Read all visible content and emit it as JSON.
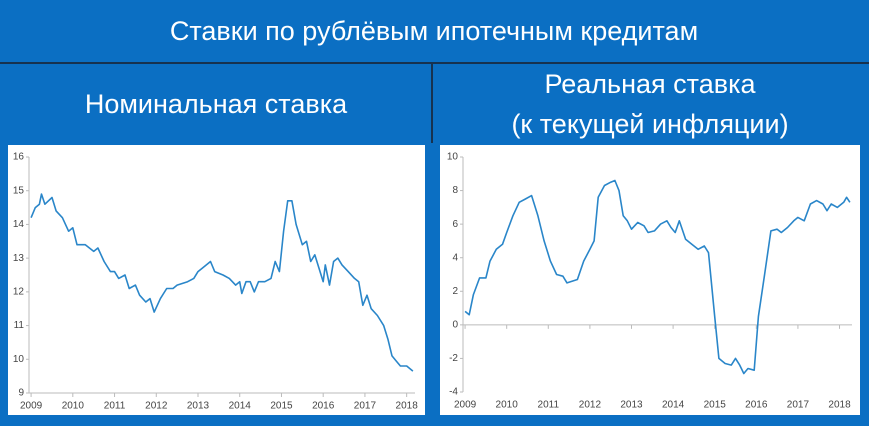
{
  "title": "Ставки по рублёвым ипотечным кредитам",
  "chart_data": [
    {
      "type": "line",
      "title": "Номинальная ставка",
      "color": "#2a86c9",
      "xlim": [
        2008.95,
        2018.2
      ],
      "xticks": [
        2009,
        2010,
        2011,
        2012,
        2013,
        2014,
        2015,
        2016,
        2017,
        2018
      ],
      "ylim": [
        9,
        16
      ],
      "yticks": [
        9,
        10,
        11,
        12,
        13,
        14,
        15,
        16
      ],
      "x": [
        2009.0,
        2009.1,
        2009.2,
        2009.25,
        2009.33,
        2009.5,
        2009.6,
        2009.75,
        2009.9,
        2010.0,
        2010.1,
        2010.3,
        2010.5,
        2010.6,
        2010.75,
        2010.9,
        2011.0,
        2011.1,
        2011.25,
        2011.35,
        2011.5,
        2011.6,
        2011.75,
        2011.85,
        2011.95,
        2012.1,
        2012.25,
        2012.4,
        2012.5,
        2012.75,
        2012.9,
        2013.0,
        2013.1,
        2013.3,
        2013.4,
        2013.6,
        2013.75,
        2013.9,
        2014.0,
        2014.05,
        2014.15,
        2014.25,
        2014.35,
        2014.45,
        2014.6,
        2014.75,
        2014.85,
        2014.95,
        2015.05,
        2015.15,
        2015.25,
        2015.35,
        2015.5,
        2015.6,
        2015.7,
        2015.8,
        2015.9,
        2016.0,
        2016.05,
        2016.15,
        2016.25,
        2016.35,
        2016.45,
        2016.6,
        2016.75,
        2016.85,
        2016.95,
        2017.05,
        2017.15,
        2017.3,
        2017.45,
        2017.55,
        2017.65,
        2017.75,
        2017.85,
        2018.0,
        2018.15
      ],
      "values": [
        14.2,
        14.5,
        14.6,
        14.9,
        14.6,
        14.8,
        14.4,
        14.2,
        13.8,
        13.9,
        13.4,
        13.4,
        13.2,
        13.3,
        12.9,
        12.6,
        12.6,
        12.4,
        12.5,
        12.1,
        12.2,
        11.9,
        11.7,
        11.8,
        11.4,
        11.8,
        12.1,
        12.1,
        12.2,
        12.3,
        12.4,
        12.6,
        12.7,
        12.9,
        12.6,
        12.5,
        12.4,
        12.2,
        12.3,
        11.95,
        12.3,
        12.3,
        12.0,
        12.3,
        12.3,
        12.4,
        12.9,
        12.6,
        13.8,
        14.7,
        14.7,
        14.0,
        13.4,
        13.5,
        12.9,
        13.1,
        12.7,
        12.3,
        12.8,
        12.2,
        12.9,
        13.0,
        12.8,
        12.6,
        12.4,
        12.3,
        11.6,
        11.9,
        11.5,
        11.3,
        11.0,
        10.6,
        10.1,
        9.95,
        9.8,
        9.8,
        9.65
      ]
    },
    {
      "type": "line",
      "title": "Реальная ставка",
      "subtitle": "(к текущей инфляции)",
      "color": "#2a86c9",
      "xlim": [
        2008.95,
        2018.3
      ],
      "xticks": [
        2009,
        2010,
        2011,
        2012,
        2013,
        2014,
        2015,
        2016,
        2017,
        2018
      ],
      "ylim": [
        -4,
        10
      ],
      "yticks": [
        -4,
        -2,
        0,
        2,
        4,
        6,
        8,
        10
      ],
      "x": [
        2009.0,
        2009.1,
        2009.2,
        2009.35,
        2009.5,
        2009.6,
        2009.75,
        2009.9,
        2010.0,
        2010.15,
        2010.3,
        2010.45,
        2010.6,
        2010.75,
        2010.9,
        2011.05,
        2011.2,
        2011.35,
        2011.45,
        2011.7,
        2011.85,
        2012.0,
        2012.1,
        2012.2,
        2012.35,
        2012.5,
        2012.6,
        2012.7,
        2012.8,
        2012.9,
        2013.0,
        2013.15,
        2013.3,
        2013.4,
        2013.55,
        2013.7,
        2013.85,
        2013.95,
        2014.05,
        2014.15,
        2014.3,
        2014.45,
        2014.6,
        2014.75,
        2014.85,
        2015.0,
        2015.1,
        2015.25,
        2015.4,
        2015.5,
        2015.6,
        2015.7,
        2015.8,
        2015.95,
        2016.05,
        2016.2,
        2016.35,
        2016.5,
        2016.6,
        2016.75,
        2016.9,
        2017.0,
        2017.15,
        2017.3,
        2017.45,
        2017.6,
        2017.7,
        2017.8,
        2017.95,
        2018.1,
        2018.17,
        2018.25
      ],
      "values": [
        0.8,
        0.6,
        1.8,
        2.8,
        2.8,
        3.8,
        4.5,
        4.8,
        5.5,
        6.5,
        7.3,
        7.5,
        7.7,
        6.5,
        5.0,
        3.8,
        3.0,
        2.9,
        2.5,
        2.7,
        3.8,
        4.5,
        5.0,
        7.6,
        8.3,
        8.5,
        8.6,
        8.0,
        6.5,
        6.2,
        5.7,
        6.1,
        5.9,
        5.5,
        5.6,
        6.0,
        6.2,
        5.8,
        5.5,
        6.2,
        5.1,
        4.8,
        4.5,
        4.7,
        4.3,
        0.5,
        -2.0,
        -2.3,
        -2.4,
        -2.0,
        -2.4,
        -2.9,
        -2.6,
        -2.7,
        0.5,
        3.0,
        5.6,
        5.7,
        5.5,
        5.8,
        6.2,
        6.4,
        6.2,
        7.2,
        7.4,
        7.2,
        6.8,
        7.2,
        7.0,
        7.3,
        7.6,
        7.3
      ]
    }
  ]
}
